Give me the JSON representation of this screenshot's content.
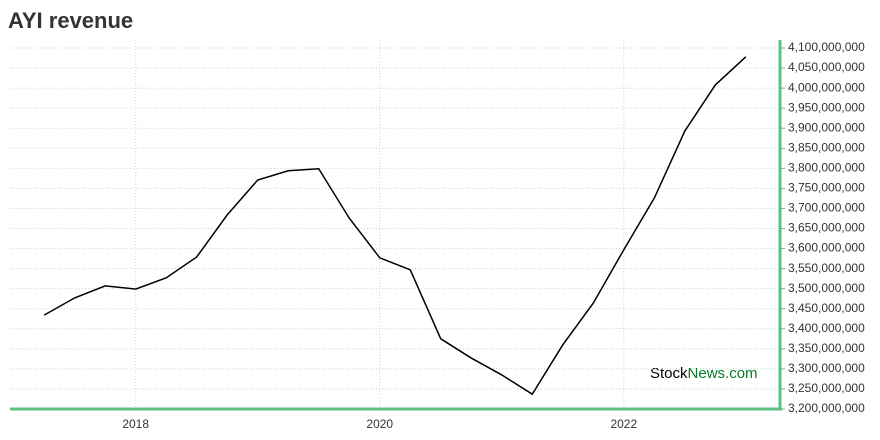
{
  "chart_data": {
    "type": "line",
    "title": "AYI revenue",
    "watermark": [
      "Stock",
      "News.com"
    ],
    "x": [
      2017.25,
      2017.5,
      2017.75,
      2018.0,
      2018.25,
      2018.5,
      2018.75,
      2019.0,
      2019.25,
      2019.5,
      2019.75,
      2020.0,
      2020.25,
      2020.5,
      2020.75,
      2021.0,
      2021.25,
      2021.5,
      2021.75,
      2022.0,
      2022.25,
      2022.5,
      2022.75,
      2023.0
    ],
    "series": [
      {
        "name": "revenue",
        "color": "#000000",
        "values": [
          3434000000,
          3477000000,
          3507000000,
          3499000000,
          3527000000,
          3579000000,
          3684000000,
          3771000000,
          3794000000,
          3799000000,
          3676000000,
          3577000000,
          3547000000,
          3375000000,
          3327000000,
          3285000000,
          3237000000,
          3360000000,
          3464000000,
          3597000000,
          3726000000,
          3893000000,
          4008000000,
          4078000000
        ]
      }
    ],
    "xlim": [
      2016.97,
      2023.28
    ],
    "xticks": [
      2018,
      2020,
      2022
    ],
    "ylim": [
      3200000000,
      4120000000
    ],
    "yticks": [
      {
        "value": 3200000000,
        "label": "3,200,000,000"
      },
      {
        "value": 3250000000,
        "label": "3,250,000,000"
      },
      {
        "value": 3300000000,
        "label": "3,300,000,000"
      },
      {
        "value": 3350000000,
        "label": "3,350,000,000"
      },
      {
        "value": 3400000000,
        "label": "3,400,000,000"
      },
      {
        "value": 3450000000,
        "label": "3,450,000,000"
      },
      {
        "value": 3500000000,
        "label": "3,500,000,000"
      },
      {
        "value": 3550000000,
        "label": "3,550,000,000"
      },
      {
        "value": 3600000000,
        "label": "3,600,000,000"
      },
      {
        "value": 3650000000,
        "label": "3,650,000,000"
      },
      {
        "value": 3700000000,
        "label": "3,700,000,000"
      },
      {
        "value": 3750000000,
        "label": "3,750,000,000"
      },
      {
        "value": 3800000000,
        "label": "3,800,000,000"
      },
      {
        "value": 3850000000,
        "label": "3,850,000,000"
      },
      {
        "value": 3900000000,
        "label": "3,900,000,000"
      },
      {
        "value": 3950000000,
        "label": "3,950,000,000"
      },
      {
        "value": 4000000000,
        "label": "4,000,000,000"
      },
      {
        "value": 4050000000,
        "label": "4,050,000,000"
      },
      {
        "value": 4100000000,
        "label": "4,100,000,000"
      }
    ],
    "grid": true,
    "axis_color": "#5cc185",
    "title_color": "#5cc185"
  }
}
